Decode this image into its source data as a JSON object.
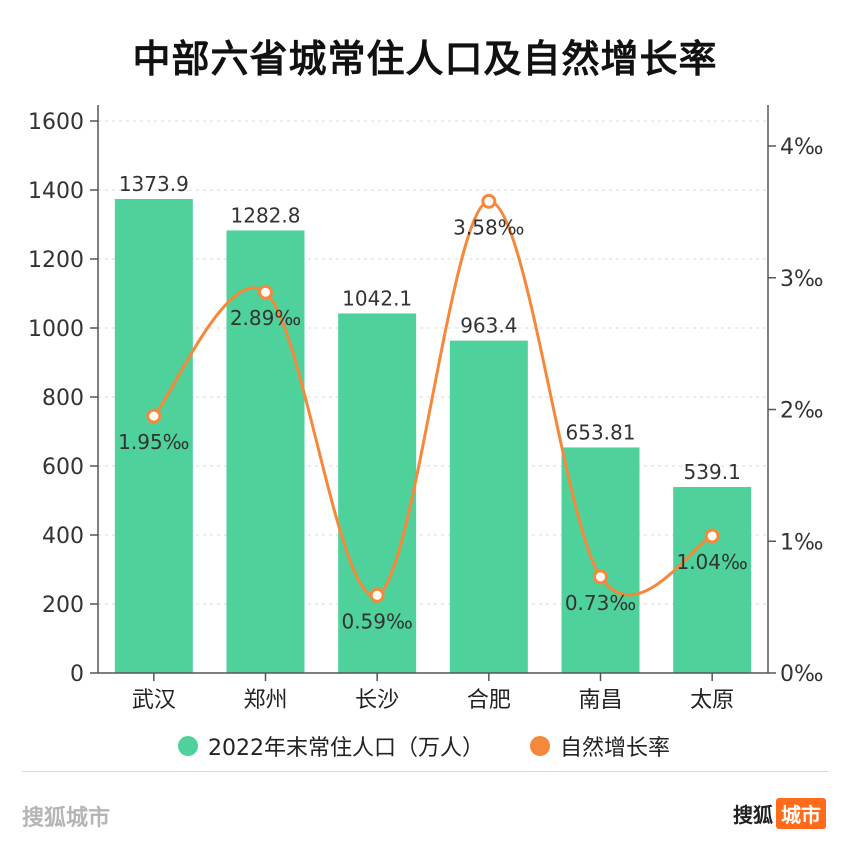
{
  "title": "中部六省城常住人口及自然增长率",
  "legend": {
    "bar_label": "2022年末常住人口（万人）",
    "line_label": "自然增长率"
  },
  "footer": {
    "left": "搜狐城市",
    "brand_main": "搜狐",
    "brand_tag": "城市"
  },
  "colors": {
    "bar": "#4fd19b",
    "line": "#f5883a"
  },
  "chart_data": {
    "type": "bar",
    "categories": [
      "武汉",
      "郑州",
      "长沙",
      "合肥",
      "南昌",
      "太原"
    ],
    "series": [
      {
        "name": "2022年末常住人口（万人）",
        "type": "bar",
        "axis": "left",
        "values": [
          1373.9,
          1282.8,
          1042.1,
          963.4,
          653.81,
          539.1
        ],
        "labels": [
          "1373.9",
          "1282.8",
          "1042.1",
          "963.4",
          "653.81",
          "539.1"
        ]
      },
      {
        "name": "自然增长率",
        "type": "line",
        "axis": "right",
        "values": [
          1.95,
          2.89,
          0.59,
          3.58,
          0.73,
          1.04
        ],
        "labels": [
          "1.95‰",
          "2.89‰",
          "0.59‰",
          "3.58‰",
          "0.73‰",
          "1.04‰"
        ]
      }
    ],
    "y_left": {
      "ylim": [
        0,
        1600
      ],
      "ticks": [
        "0",
        "200",
        "400",
        "600",
        "800",
        "1000",
        "1200",
        "1400",
        "1600"
      ]
    },
    "y_right": {
      "ylim": [
        0,
        4
      ],
      "ticks": [
        "0‰",
        "1‰",
        "2‰",
        "3‰",
        "4‰"
      ]
    },
    "grid": true,
    "legend_position": "bottom"
  }
}
